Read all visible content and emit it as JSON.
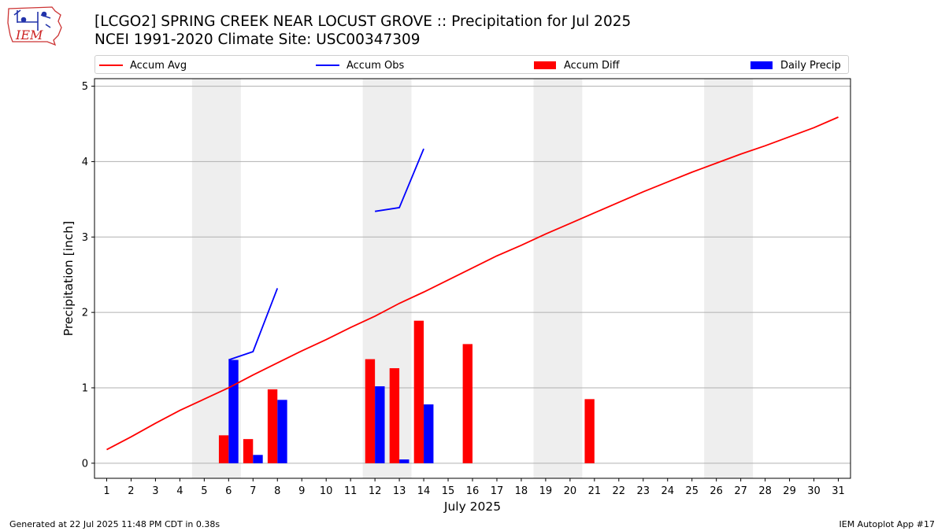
{
  "header": {
    "title_line1": "[LCGO2] SPRING CREEK NEAR LOCUST GROVE :: Precipitation for Jul 2025",
    "title_line2": "NCEI 1991-2020 Climate Site: USC00347309"
  },
  "logo": {
    "text": "IEM",
    "icon": "iem-iowa-weather-logo"
  },
  "colors": {
    "accum_avg": "#ff0000",
    "accum_obs": "#0000ff",
    "accum_diff": "#ff0000",
    "daily_precip": "#0000ff",
    "weekend_shade": "#eeeeee",
    "grid": "#b0b0b0"
  },
  "footer": {
    "left": "Generated at 22 Jul 2025 11:48 PM CDT in 0.38s",
    "right": "IEM Autoplot App #17"
  },
  "chart_data": {
    "type": "bar",
    "xlabel": "July 2025",
    "ylabel": "Precipitation [inch]",
    "xlim": [
      0.5,
      31.5
    ],
    "ylim": [
      -0.2,
      5.1
    ],
    "yticks": [
      0,
      1,
      2,
      3,
      4,
      5
    ],
    "x": [
      1,
      2,
      3,
      4,
      5,
      6,
      7,
      8,
      9,
      10,
      11,
      12,
      13,
      14,
      15,
      16,
      17,
      18,
      19,
      20,
      21,
      22,
      23,
      24,
      25,
      26,
      27,
      28,
      29,
      30,
      31
    ],
    "weekend_spans": [
      [
        4.5,
        6.5
      ],
      [
        11.5,
        13.5
      ],
      [
        18.5,
        20.5
      ],
      [
        25.5,
        27.5
      ]
    ],
    "grid": "horizontal",
    "legend_position": "top",
    "legend": [
      "Accum Avg",
      "Accum Obs",
      "Accum Diff",
      "Daily Precip"
    ],
    "series": [
      {
        "name": "Accum Avg",
        "kind": "line",
        "points": [
          [
            1,
            0.18
          ],
          [
            2,
            0.35
          ],
          [
            3,
            0.53
          ],
          [
            4,
            0.7
          ],
          [
            5,
            0.85
          ],
          [
            6,
            1.0
          ],
          [
            7,
            1.17
          ],
          [
            8,
            1.33
          ],
          [
            9,
            1.49
          ],
          [
            10,
            1.64
          ],
          [
            11,
            1.8
          ],
          [
            12,
            1.95
          ],
          [
            13,
            2.12
          ],
          [
            14,
            2.27
          ],
          [
            15,
            2.43
          ],
          [
            16,
            2.59
          ],
          [
            17,
            2.75
          ],
          [
            18,
            2.89
          ],
          [
            19,
            3.04
          ],
          [
            20,
            3.18
          ],
          [
            21,
            3.32
          ],
          [
            22,
            3.46
          ],
          [
            23,
            3.6
          ],
          [
            24,
            3.73
          ],
          [
            25,
            3.86
          ],
          [
            26,
            3.98
          ],
          [
            27,
            4.1
          ],
          [
            28,
            4.21
          ],
          [
            29,
            4.33
          ],
          [
            30,
            4.45
          ],
          [
            31,
            4.59
          ]
        ]
      },
      {
        "name": "Accum Obs",
        "kind": "line",
        "segments": [
          [
            [
              6,
              1.37
            ],
            [
              7,
              1.48
            ],
            [
              8,
              2.32
            ]
          ],
          [
            [
              12,
              3.34
            ],
            [
              13,
              3.39
            ],
            [
              14,
              4.17
            ]
          ]
        ]
      },
      {
        "name": "Accum Diff",
        "kind": "bar",
        "points": [
          [
            6,
            0.37
          ],
          [
            7,
            0.32
          ],
          [
            8,
            0.98
          ],
          [
            12,
            1.38
          ],
          [
            13,
            1.26
          ],
          [
            14,
            1.89
          ],
          [
            16,
            1.58
          ],
          [
            21,
            0.85
          ]
        ]
      },
      {
        "name": "Daily Precip",
        "kind": "bar",
        "points": [
          [
            6,
            1.37
          ],
          [
            7,
            0.11
          ],
          [
            8,
            0.84
          ],
          [
            12,
            1.02
          ],
          [
            13,
            0.05
          ],
          [
            14,
            0.78
          ]
        ]
      }
    ]
  }
}
